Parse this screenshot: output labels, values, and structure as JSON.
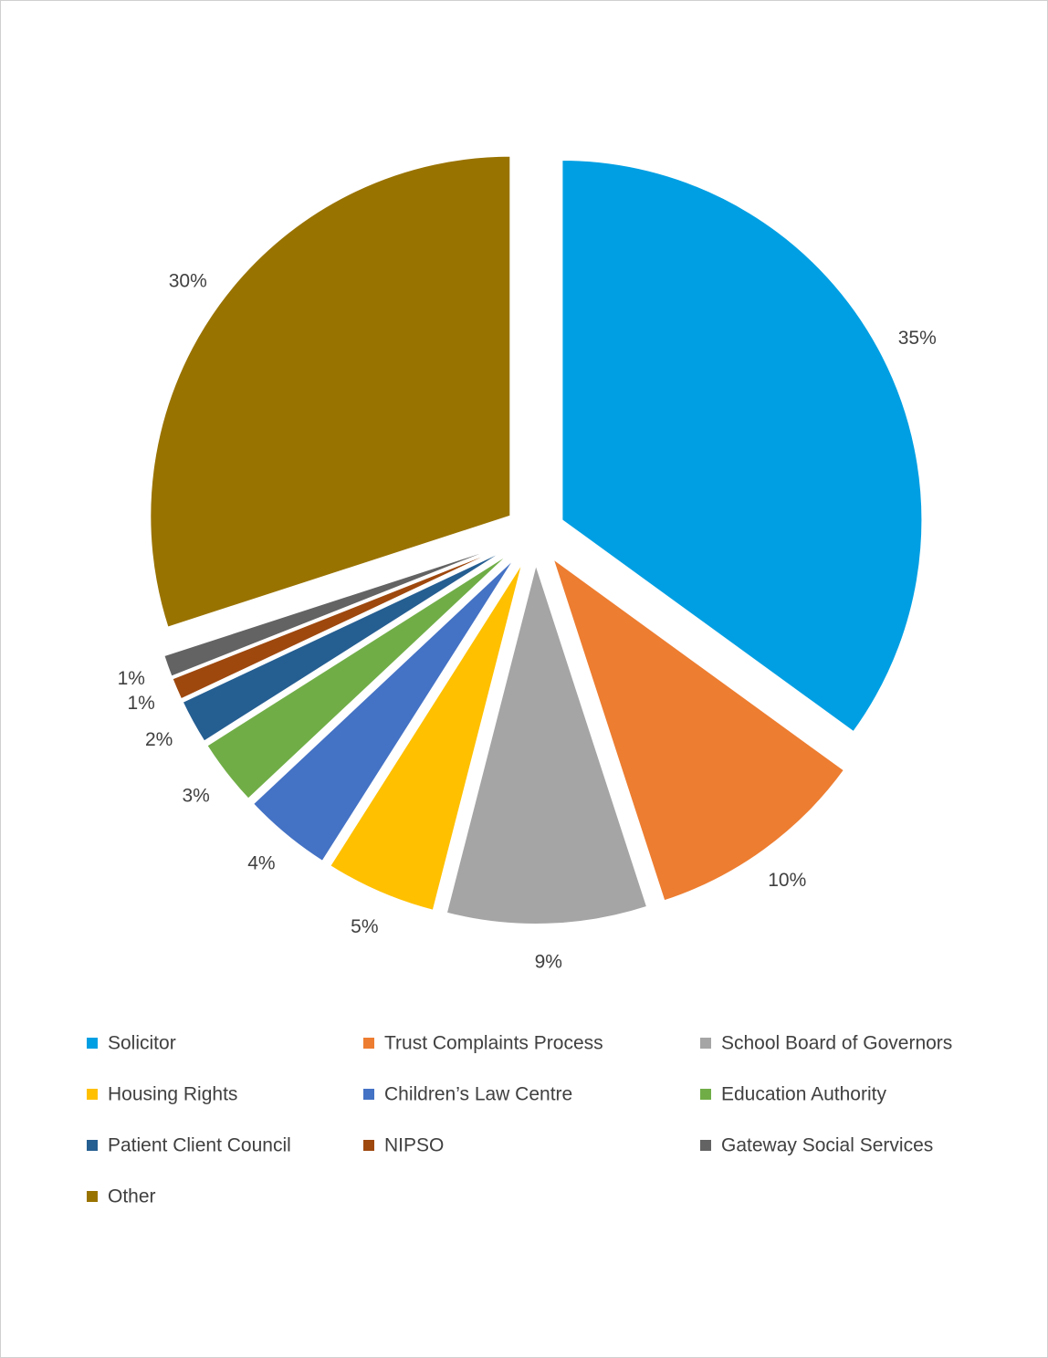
{
  "chart_data": {
    "type": "pie",
    "categories": [
      "Solicitor",
      "Trust Complaints Process",
      "School Board of Governors",
      "Housing Rights",
      "Children’s Law Centre",
      "Education Authority",
      "Patient Client Council",
      "NIPSO",
      "Gateway Social Services",
      "Other"
    ],
    "values": [
      35,
      10,
      9,
      5,
      4,
      3,
      2,
      1,
      1,
      30
    ],
    "value_labels": [
      "35%",
      "10%",
      "9%",
      "5%",
      "4%",
      "3%",
      "2%",
      "1%",
      "1%",
      "30%"
    ],
    "colors": [
      "#009fe3",
      "#ed7d31",
      "#a5a5a5",
      "#ffc000",
      "#4472c4",
      "#70ad47",
      "#255e91",
      "#9e480e",
      "#636363",
      "#997300"
    ],
    "legend": "bottom"
  }
}
